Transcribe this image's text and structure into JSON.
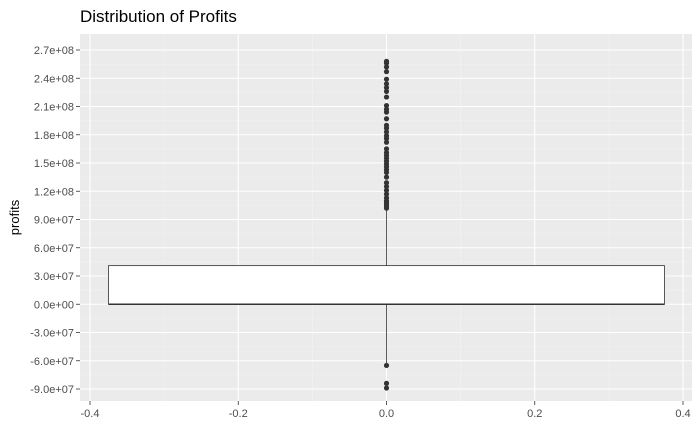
{
  "chart_data": {
    "type": "box",
    "title": "Distribution of Profits",
    "xlabel": "",
    "ylabel": "profits",
    "xlim": [
      -0.4,
      0.4
    ],
    "ylim": [
      -100000000,
      280000000
    ],
    "x_ticks": [
      {
        "value": -0.4,
        "label": "-0.4"
      },
      {
        "value": -0.2,
        "label": "-0.2"
      },
      {
        "value": 0.0,
        "label": "0.0"
      },
      {
        "value": 0.2,
        "label": "0.2"
      },
      {
        "value": 0.4,
        "label": "0.4"
      }
    ],
    "y_ticks": [
      {
        "value": -90000000,
        "label": "-9.0e+07"
      },
      {
        "value": -60000000,
        "label": "-6.0e+07"
      },
      {
        "value": -30000000,
        "label": "-3.0e+07"
      },
      {
        "value": 0,
        "label": "0.0e+00"
      },
      {
        "value": 30000000,
        "label": "3.0e+07"
      },
      {
        "value": 60000000,
        "label": "6.0e+07"
      },
      {
        "value": 90000000,
        "label": "9.0e+07"
      },
      {
        "value": 120000000,
        "label": "1.2e+08"
      },
      {
        "value": 150000000,
        "label": "1.5e+08"
      },
      {
        "value": 180000000,
        "label": "1.8e+08"
      },
      {
        "value": 210000000,
        "label": "2.1e+08"
      },
      {
        "value": 240000000,
        "label": "2.4e+08"
      },
      {
        "value": 270000000,
        "label": "2.7e+08"
      }
    ],
    "grid": true,
    "box": {
      "x": 0,
      "width": 0.75,
      "q1": 0,
      "median": 0,
      "q3": 41000000,
      "whisker_low": -64000000,
      "whisker_high": 102000000
    },
    "outliers": [
      102000000,
      104000000,
      106000000,
      108000000,
      110000000,
      113000000,
      117000000,
      121000000,
      125000000,
      129000000,
      135000000,
      140000000,
      143000000,
      146000000,
      149000000,
      152000000,
      155000000,
      158000000,
      161000000,
      165000000,
      172000000,
      176000000,
      179000000,
      183000000,
      187000000,
      190000000,
      197000000,
      204000000,
      207000000,
      211000000,
      220000000,
      226000000,
      230000000,
      234000000,
      239000000,
      247000000,
      252000000,
      256000000,
      258000000,
      -65000000,
      -84000000,
      -89000000
    ],
    "colors": {
      "panel": "#ebebeb",
      "grid_major": "#ffffff",
      "grid_minor": "#f2f2f2",
      "box_fill": "#ffffff",
      "box_line": "#333333",
      "outlier": "#333333",
      "tick_mark": "#333333",
      "tick_label": "#4d4d4d"
    }
  }
}
